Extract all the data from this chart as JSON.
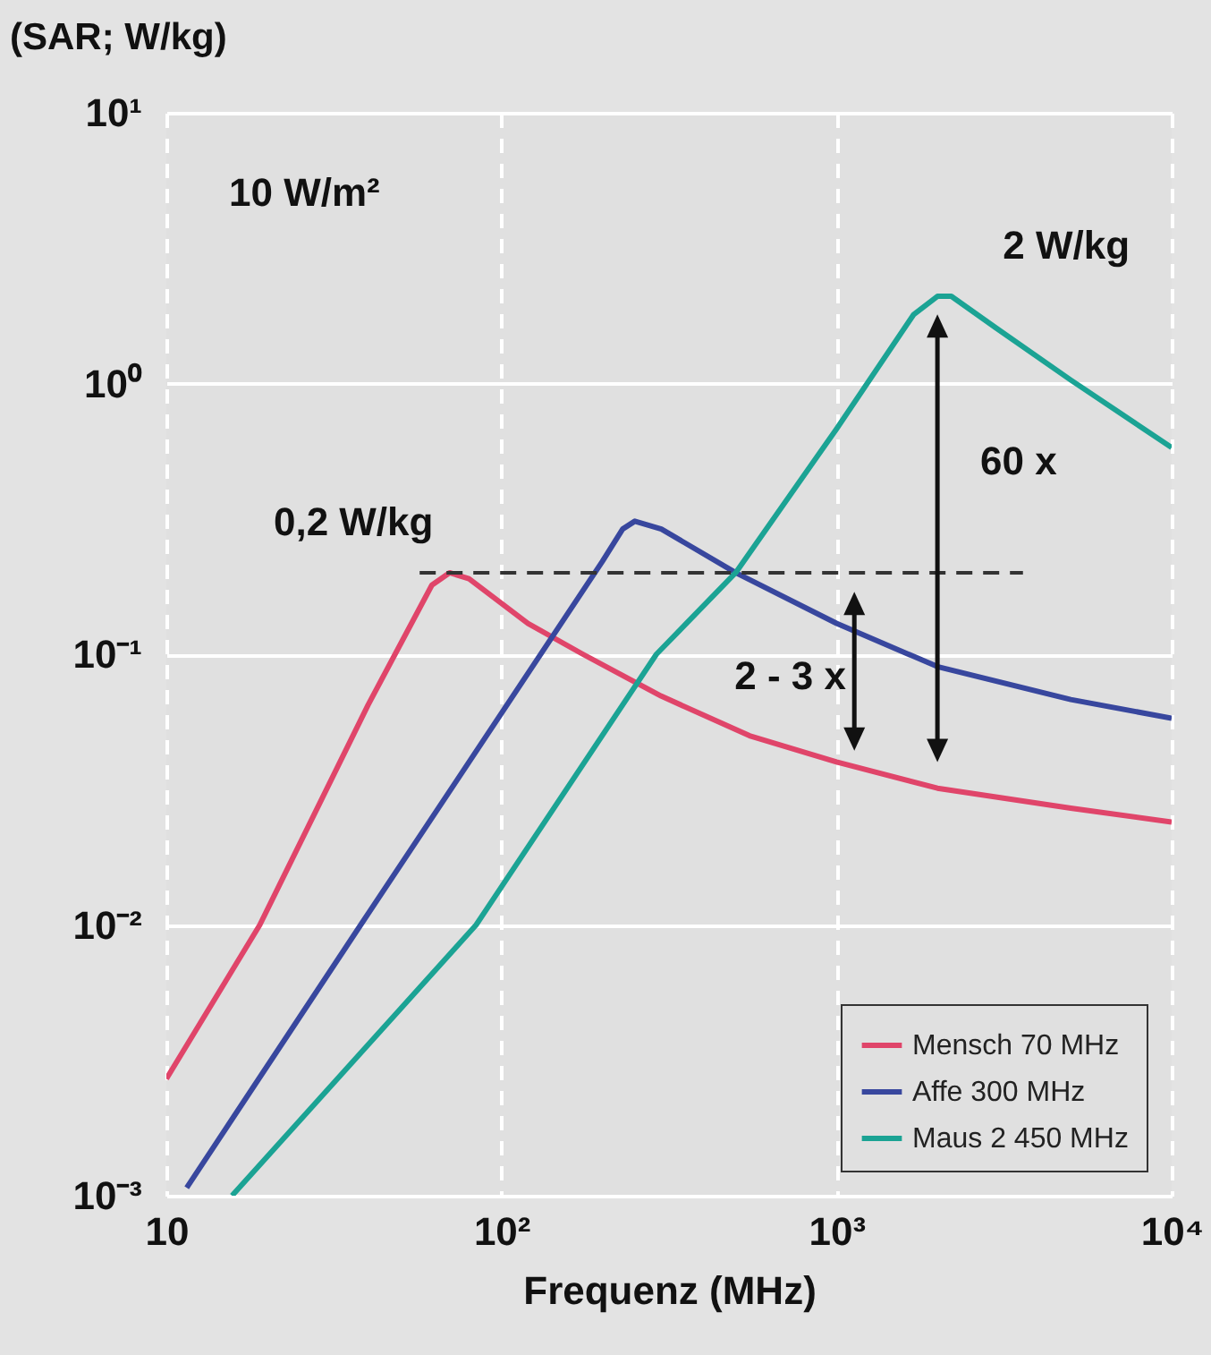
{
  "chart_data": {
    "type": "line",
    "xlabel": "Frequenz (MHz)",
    "ylabel": "(SAR; W/kg)",
    "log": "xy",
    "grid": true,
    "legend": "bottom right",
    "xlim": [
      10,
      10000
    ],
    "xticks": [
      10,
      {
        "value": 100,
        "label": "10²"
      },
      {
        "value": 1000,
        "label": "10³"
      },
      {
        "value": 10000,
        "label": "10⁴"
      }
    ],
    "ylim": [
      0.001,
      10
    ],
    "yticks": [
      {
        "value": 0.001,
        "label": "10⁻³"
      },
      {
        "value": 0.01,
        "label": "10⁻²"
      },
      {
        "value": 0.1,
        "label": "10⁻¹"
      },
      {
        "value": 1,
        "label": "10⁰"
      },
      {
        "value": 10,
        "label": "10¹"
      }
    ],
    "series": [
      {
        "name": "Mensch 70 MHz",
        "color": "#e0456a",
        "x": [
          10,
          19,
          40,
          62,
          70,
          80,
          120,
          175,
          300,
          550,
          1000,
          2000,
          5000,
          10000
        ],
        "values": [
          0.0027,
          0.01,
          0.065,
          0.18,
          0.2,
          0.19,
          0.13,
          0.1,
          0.07,
          0.05,
          0.04,
          0.032,
          0.027,
          0.024
        ]
      },
      {
        "name": "Affe 300 MHz",
        "color": "#38479e",
        "x": [
          11.5,
          38,
          200,
          230,
          250,
          300,
          500,
          1000,
          2000,
          5000,
          10000
        ],
        "values": [
          0.00107,
          0.01,
          0.22,
          0.29,
          0.31,
          0.29,
          0.2,
          0.13,
          0.09,
          0.068,
          0.058
        ]
      },
      {
        "name": "Maus 2 450 MHz",
        "color": "#1ba394",
        "x": [
          15.7,
          84,
          290,
          500,
          1000,
          1700,
          2000,
          2200,
          3000,
          5000,
          10000
        ],
        "values": [
          0.001,
          0.01,
          0.1,
          0.2,
          0.68,
          1.8,
          2.1,
          2.1,
          1.6,
          1.03,
          0.58
        ]
      },
      {
        "color": "#333333",
        "line_style": "dashed",
        "x": [
          57,
          3600
        ],
        "values": [
          0.2,
          0.2
        ]
      }
    ],
    "annotations": [
      "10 W/m²",
      {
        "text": "0,2 W/kg",
        "x": 57,
        "y": 0.2
      },
      {
        "text": "2 W/kg",
        "x": 2000,
        "y": 2.1
      },
      "60 x",
      "2 - 3 x"
    ]
  }
}
